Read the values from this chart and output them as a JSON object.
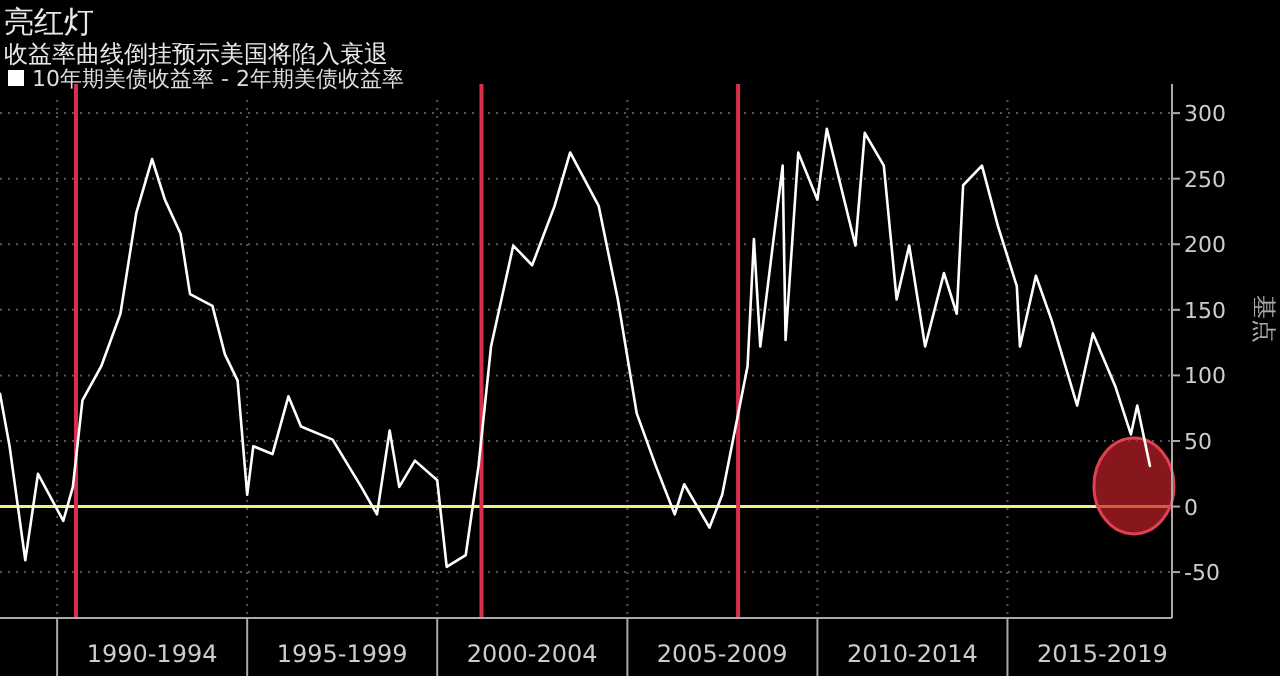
{
  "chart_data": {
    "type": "line",
    "title": "亮红灯",
    "subtitle": "收益率曲线倒挂预示美国将陷入衰退",
    "ylabel": "基点",
    "x": [
      "1988-07",
      "1988-10",
      "1989-03",
      "1989-07",
      "1990-03",
      "1990-06",
      "1990-09",
      "1991-03",
      "1991-09",
      "1992-02",
      "1992-07",
      "1992-11",
      "1993-04",
      "1993-07",
      "1994-02",
      "1994-06",
      "1994-10",
      "1995-01",
      "1995-03",
      "1995-09",
      "1996-02",
      "1996-06",
      "1997-04",
      "1998-01",
      "1998-06",
      "1998-10",
      "1999-01",
      "1999-06",
      "2000-01",
      "2000-04",
      "2000-10",
      "2001-02",
      "2001-06",
      "2002-01",
      "2002-07",
      "2003-02",
      "2003-07",
      "2004-04",
      "2004-10",
      "2005-04",
      "2005-10",
      "2006-04",
      "2006-07",
      "2007-03",
      "2007-07",
      "2008-03",
      "2008-05",
      "2008-07",
      "2009-02",
      "2009-03",
      "2009-07",
      "2010-01",
      "2010-04",
      "2011-01",
      "2011-04",
      "2011-10",
      "2012-02",
      "2012-06",
      "2012-11",
      "2013-05",
      "2013-09",
      "2013-11",
      "2014-05",
      "2014-10",
      "2015-04",
      "2015-05",
      "2015-10",
      "2016-03",
      "2016-11",
      "2017-04",
      "2017-11",
      "2018-04",
      "2018-06",
      "2018-10"
    ],
    "series": [
      {
        "name": "10年期美债收益率 - 2年期美债收益率",
        "color": "#ffffff",
        "values": [
          86,
          46,
          -41,
          25,
          -11,
          15,
          81,
          107,
          147,
          224,
          265,
          234,
          208,
          162,
          153,
          116,
          96,
          9,
          46,
          40,
          84,
          61,
          51,
          15,
          -6,
          58,
          15,
          35,
          20,
          -46,
          -37,
          31,
          122,
          199,
          184,
          229,
          270,
          229,
          158,
          71,
          31,
          -6,
          17,
          -16,
          9,
          107,
          204,
          122,
          260,
          127,
          270,
          234,
          288,
          199,
          285,
          260,
          158,
          199,
          122,
          178,
          147,
          245,
          260,
          214,
          168,
          122,
          176,
          142,
          77,
          132,
          92,
          55,
          77,
          31
        ]
      }
    ],
    "xlim": [
      "1988-07",
      "2019-05"
    ],
    "xticks": [
      {
        "value": "1990-01",
        "label": null
      },
      {
        "value": "1992-07",
        "label": "1990-1994"
      },
      {
        "value": "1995-01",
        "label": null
      },
      {
        "value": "1997-07",
        "label": "1995-1999"
      },
      {
        "value": "2000-01",
        "label": null
      },
      {
        "value": "2002-07",
        "label": "2000-2004"
      },
      {
        "value": "2005-01",
        "label": null
      },
      {
        "value": "2007-07",
        "label": "2005-2009"
      },
      {
        "value": "2010-01",
        "label": null
      },
      {
        "value": "2012-07",
        "label": "2010-2014"
      },
      {
        "value": "2015-01",
        "label": null
      },
      {
        "value": "2017-07",
        "label": "2015-2019"
      }
    ],
    "ylim": [
      -85,
      310
    ],
    "yticks": [
      -50,
      0,
      50,
      100,
      150,
      200,
      250,
      300
    ],
    "ref_lines": [
      {
        "axis": "y",
        "value": 0,
        "color": "#f2f07c"
      },
      {
        "axis": "x",
        "value": "1990-07",
        "color": "#d8304c"
      },
      {
        "axis": "x",
        "value": "2001-03",
        "color": "#d8304c"
      },
      {
        "axis": "x",
        "value": "2007-12",
        "color": "#d8304c"
      }
    ],
    "grid": true,
    "legend": "top left",
    "line_style": "solid"
  }
}
